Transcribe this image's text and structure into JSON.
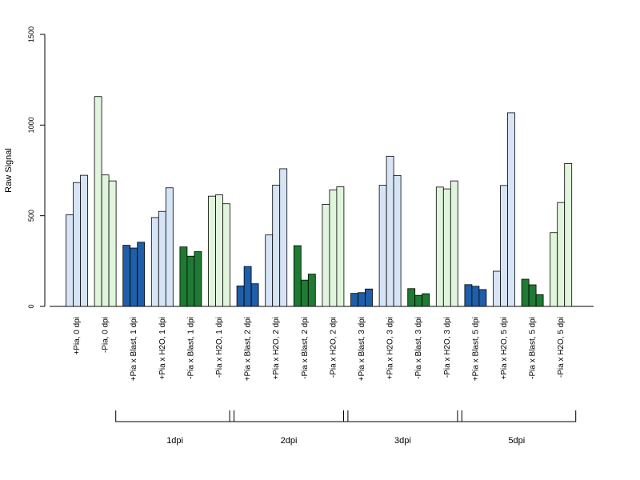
{
  "chart_data": {
    "type": "bar",
    "ylabel": "Raw Signal",
    "ylim": [
      0,
      1500
    ],
    "yticks": [
      "0",
      "500",
      "1000",
      "1500"
    ],
    "grid": false,
    "categories": [
      "+Pia, 0 dpi",
      "-Pia, 0 dpi",
      "+Pia x Blast, 1 dpi",
      "+Pia x H2O, 1 dpi",
      "-Pia x Blast, 1 dpi",
      "-Pia x H2O, 1 dpi",
      "+Pia x Blast, 2 dpi",
      "+Pia x H2O, 2 dpi",
      "-Pia x Blast, 2 dpi",
      "-Pia x H2O, 2 dpi",
      "+Pia x Blast, 3 dpi",
      "+Pia x H2O, 3 dpi",
      "-Pia x Blast, 3 dpi",
      "-Pia x H2O, 3 dpi",
      "+Pia x Blast, 5 dpi",
      "+Pia x H2O, 5 dpi",
      "-Pia x Blast, 5 dpi",
      "-Pia x H2O, 5 dpi"
    ],
    "groups": [
      {
        "category": "+Pia, 0 dpi",
        "color": "#d6e4f5",
        "values": [
          505,
          683,
          723
        ]
      },
      {
        "category": "-Pia, 0 dpi",
        "color": "#e0f5dc",
        "values": [
          1157,
          725,
          692
        ]
      },
      {
        "category": "+Pia x Blast, 1 dpi",
        "color": "#1f5ea8",
        "values": [
          337,
          322,
          354
        ]
      },
      {
        "category": "+Pia x H2O, 1 dpi",
        "color": "#d6e4f5",
        "values": [
          490,
          524,
          654
        ]
      },
      {
        "category": "-Pia x Blast, 1 dpi",
        "color": "#1f7a34",
        "values": [
          328,
          277,
          302
        ]
      },
      {
        "category": "-Pia x H2O, 1 dpi",
        "color": "#e0f5dc",
        "values": [
          608,
          615,
          566
        ]
      },
      {
        "category": "+Pia x Blast, 2 dpi",
        "color": "#1f5ea8",
        "values": [
          113,
          220,
          125
        ]
      },
      {
        "category": "+Pia x H2O, 2 dpi",
        "color": "#d6e4f5",
        "values": [
          394,
          669,
          759
        ]
      },
      {
        "category": "-Pia x Blast, 2 dpi",
        "color": "#1f7a34",
        "values": [
          335,
          145,
          178
        ]
      },
      {
        "category": "-Pia x H2O, 2 dpi",
        "color": "#e0f5dc",
        "values": [
          563,
          643,
          660
        ]
      },
      {
        "category": "+Pia x Blast, 3 dpi",
        "color": "#1f5ea8",
        "values": [
          72,
          76,
          96
        ]
      },
      {
        "category": "+Pia x H2O, 3 dpi",
        "color": "#d6e4f5",
        "values": [
          668,
          828,
          722
        ]
      },
      {
        "category": "-Pia x Blast, 3 dpi",
        "color": "#1f7a34",
        "values": [
          98,
          61,
          70
        ]
      },
      {
        "category": "-Pia x H2O, 3 dpi",
        "color": "#e0f5dc",
        "values": [
          658,
          648,
          692
        ]
      },
      {
        "category": "+Pia x Blast, 5 dpi",
        "color": "#1f5ea8",
        "values": [
          120,
          111,
          93
        ]
      },
      {
        "category": "+Pia x H2O, 5 dpi",
        "color": "#d6e4f5",
        "values": [
          194,
          667,
          1068
        ]
      },
      {
        "category": "-Pia x Blast, 5 dpi",
        "color": "#1f7a34",
        "values": [
          150,
          119,
          65
        ]
      },
      {
        "category": "-Pia x H2O, 5 dpi",
        "color": "#e0f5dc",
        "values": [
          407,
          573,
          788
        ]
      }
    ],
    "timepoint_brackets": [
      {
        "label": "1dpi",
        "first_group": 2,
        "last_group": 5
      },
      {
        "label": "2dpi",
        "first_group": 6,
        "last_group": 9
      },
      {
        "label": "3dpi",
        "first_group": 10,
        "last_group": 13
      },
      {
        "label": "5dpi",
        "first_group": 14,
        "last_group": 17
      }
    ]
  }
}
